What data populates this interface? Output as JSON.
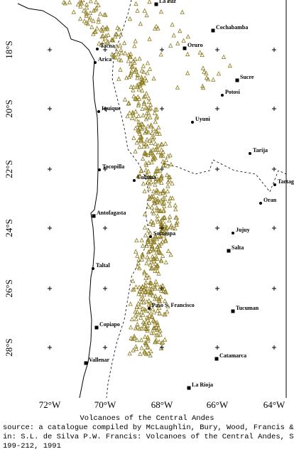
{
  "map": {
    "title": "Volcanoes of the Central Andes",
    "caption": [
      "source: a catalogue compiled by McLaughlin, Bury, Wood, Francis & de Silva;",
      "in: S.L. de Silva P.W. Francis: Volcanoes of the Central Andes, Springer Verlag",
      "199-212, 1991"
    ],
    "longitude_labels": [
      "72°W",
      "70°W",
      "68°W",
      "66°W",
      "64°W"
    ],
    "latitude_labels": [
      "18°S",
      "20°S",
      "22°S",
      "24°S",
      "26°S",
      "28°S"
    ],
    "places": [
      "La Paz",
      "Cochabamba",
      "Oruro",
      "Tacna",
      "Arica",
      "Sucre",
      "Potosi",
      "Iquique",
      "Uyuni",
      "Tarija",
      "Tocopilla",
      "Calama",
      "Tartagal",
      "Oran",
      "Antofagasta",
      "Jujuy",
      "Socompa",
      "Salta",
      "Taltal",
      "Paso S. Francisco",
      "Tucuman",
      "Copiapo",
      "Catamarca",
      "Vallenar",
      "La Rioja"
    ]
  }
}
